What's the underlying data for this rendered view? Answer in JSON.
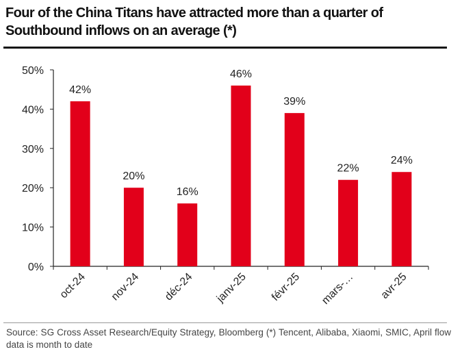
{
  "title": "Four of the China Titans have attracted more than a quarter of Southbound inflows on an average (*)",
  "source": "Source: SG Cross Asset Research/Equity Strategy, Bloomberg (*) Tencent, Alibaba, Xiaomi, SMIC, April flow data is month to date",
  "chart_data": {
    "type": "bar",
    "title": "",
    "xlabel": "",
    "ylabel": "",
    "categories": [
      "oct-24",
      "nov-24",
      "déc-24",
      "janv-25",
      "févr-25",
      "mars-…",
      "avr-25"
    ],
    "values": [
      42,
      20,
      16,
      46,
      39,
      22,
      24
    ],
    "data_labels": [
      "42%",
      "20%",
      "16%",
      "46%",
      "39%",
      "22%",
      "24%"
    ],
    "ylim": [
      0,
      50
    ],
    "yticks": [
      "0%",
      "10%",
      "20%",
      "30%",
      "40%",
      "50%"
    ],
    "grid": false,
    "bar_color": "#e2001a"
  }
}
